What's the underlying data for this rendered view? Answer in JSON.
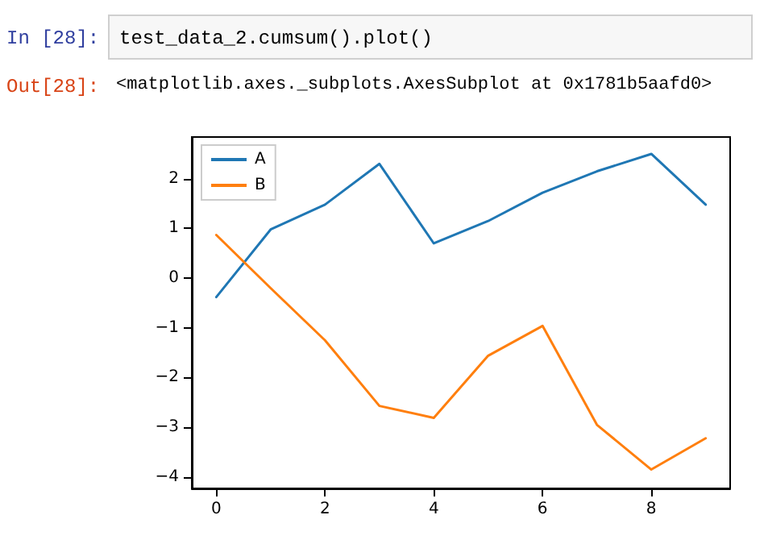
{
  "chart_data": {
    "type": "line",
    "annotations": [
      "In [28]:",
      "test_data_2.cumsum().plot()",
      "Out[28]:",
      "<matplotlib.axes._subplots.AxesSubplot at 0x1781b5aafd0>"
    ],
    "x": [
      0,
      1,
      2,
      3,
      4,
      5,
      6,
      7,
      8,
      9
    ],
    "series": [
      {
        "name": "A",
        "color": "#1f77b4",
        "values": [
          -0.38,
          0.98,
          1.48,
          2.3,
          0.7,
          1.15,
          1.72,
          2.15,
          2.5,
          1.48
        ]
      },
      {
        "name": "B",
        "color": "#ff7f0e",
        "values": [
          0.87,
          -0.2,
          -1.25,
          -2.57,
          -2.81,
          -1.56,
          -0.96,
          -2.95,
          -3.85,
          -3.22
        ]
      }
    ],
    "xlim": [
      -0.45,
      9.45
    ],
    "xticks": [
      0,
      2,
      4,
      6,
      8
    ],
    "ylim": [
      -4.23,
      2.84
    ],
    "yticks": [
      -4,
      -3,
      -2,
      -1,
      0,
      1,
      2
    ],
    "legend": "top left"
  }
}
